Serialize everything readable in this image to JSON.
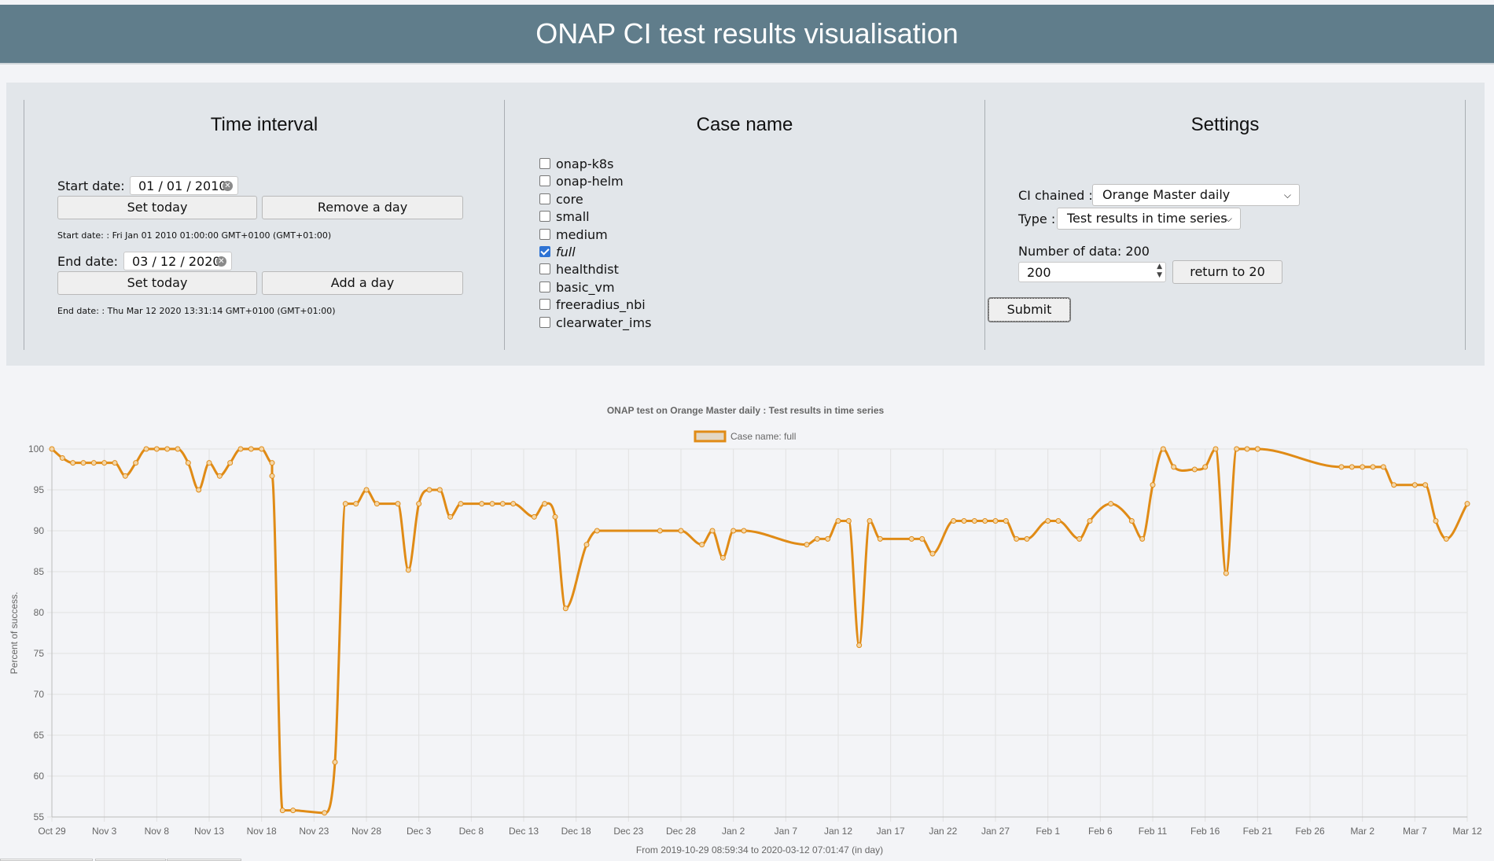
{
  "header": {
    "title": "ONAP CI test results visualisation"
  },
  "time_interval": {
    "title": "Time interval",
    "start_label": "Start date:",
    "start_value": "01 / 01 / 2010",
    "set_today_label": "Set today",
    "remove_day_label": "Remove a day",
    "start_note": "Start date: : Fri Jan 01 2010 01:00:00 GMT+0100 (GMT+01:00)",
    "end_label": "End date:",
    "end_value": "03 / 12 / 2020",
    "add_day_label": "Add a day",
    "end_note": "End date: : Thu Mar 12 2020 13:31:14 GMT+0100 (GMT+01:00)"
  },
  "case_name": {
    "title": "Case name",
    "items": [
      {
        "label": "onap-k8s",
        "checked": false
      },
      {
        "label": "onap-helm",
        "checked": false
      },
      {
        "label": "core",
        "checked": false
      },
      {
        "label": "small",
        "checked": false
      },
      {
        "label": "medium",
        "checked": false
      },
      {
        "label": "full",
        "checked": true
      },
      {
        "label": "healthdist",
        "checked": false
      },
      {
        "label": "basic_vm",
        "checked": false
      },
      {
        "label": "freeradius_nbi",
        "checked": false
      },
      {
        "label": "clearwater_ims",
        "checked": false
      }
    ]
  },
  "settings": {
    "title": "Settings",
    "ci_label": "CI chained :",
    "ci_value": "Orange Master daily",
    "type_label": "Type :",
    "type_value": "Test results in time series",
    "number_label": "Number of data: 200",
    "number_value": "200",
    "return_label": "return to 20",
    "submit_label": "Submit"
  },
  "icons": {
    "clear": "clear-icon",
    "chevron": "chevron-down-icon",
    "spinner": "spinner-arrows-icon"
  },
  "colors": {
    "header_bg": "#607d8b",
    "line": "#e08b16",
    "panel_bg": "#e2e6ea"
  },
  "chart_data": {
    "type": "line",
    "title": "ONAP test on Orange Master daily : Test results in time series",
    "legend": "Case name: full",
    "ylabel": "Percent of success.",
    "xlabel": "From 2019-10-29 08:59:34 to 2020-03-12 07:01:47 (in day)",
    "ylim": [
      55,
      100
    ],
    "yticks": [
      55,
      60,
      65,
      70,
      75,
      80,
      85,
      90,
      95,
      100
    ],
    "x_start": "Oct 29",
    "xtick_labels": [
      "Oct 29",
      "Nov 3",
      "Nov 8",
      "Nov 13",
      "Nov 18",
      "Nov 23",
      "Nov 28",
      "Dec 3",
      "Dec 8",
      "Dec 13",
      "Dec 18",
      "Dec 23",
      "Dec 28",
      "Jan 2",
      "Jan 7",
      "Jan 12",
      "Jan 17",
      "Jan 22",
      "Jan 27",
      "Feb 1",
      "Feb 6",
      "Feb 11",
      "Feb 16",
      "Feb 21",
      "Feb 26",
      "Mar 2",
      "Mar 7",
      "Mar 12"
    ],
    "series": [
      {
        "name": "Case name: full",
        "points": [
          [
            "Oct 29",
            100
          ],
          [
            "Oct 30",
            98.9
          ],
          [
            "Oct 31",
            98.3
          ],
          [
            "Nov 1",
            98.3
          ],
          [
            "Nov 2",
            98.3
          ],
          [
            "Nov 3",
            98.3
          ],
          [
            "Nov 4",
            98.3
          ],
          [
            "Nov 5",
            96.7
          ],
          [
            "Nov 6",
            98.3
          ],
          [
            "Nov 7",
            100
          ],
          [
            "Nov 8",
            100
          ],
          [
            "Nov 9",
            100
          ],
          [
            "Nov 10",
            100
          ],
          [
            "Nov 11",
            98.3
          ],
          [
            "Nov 12",
            95
          ],
          [
            "Nov 13",
            98.3
          ],
          [
            "Nov 14",
            96.7
          ],
          [
            "Nov 15",
            98.3
          ],
          [
            "Nov 16",
            100
          ],
          [
            "Nov 17",
            100
          ],
          [
            "Nov 18",
            100
          ],
          [
            "Nov 19",
            98.3
          ],
          [
            "Nov 19",
            96.7
          ],
          [
            "Nov 20",
            55.8
          ],
          [
            "Nov 21",
            55.8
          ],
          [
            "Nov 24",
            55.5
          ],
          [
            "Nov 25",
            61.7
          ],
          [
            "Nov 26",
            93.3
          ],
          [
            "Nov 27",
            93.3
          ],
          [
            "Nov 28",
            95
          ],
          [
            "Nov 29",
            93.3
          ],
          [
            "Dec 1",
            93.3
          ],
          [
            "Dec 2",
            85.2
          ],
          [
            "Dec 3",
            93.3
          ],
          [
            "Dec 4",
            95
          ],
          [
            "Dec 5",
            95
          ],
          [
            "Dec 6",
            91.7
          ],
          [
            "Dec 7",
            93.3
          ],
          [
            "Dec 9",
            93.3
          ],
          [
            "Dec 10",
            93.3
          ],
          [
            "Dec 11",
            93.3
          ],
          [
            "Dec 12",
            93.3
          ],
          [
            "Dec 14",
            91.7
          ],
          [
            "Dec 15",
            93.3
          ],
          [
            "Dec 16",
            91.7
          ],
          [
            "Dec 17",
            80.5
          ],
          [
            "Dec 19",
            88.3
          ],
          [
            "Dec 20",
            90
          ],
          [
            "Dec 26",
            90
          ],
          [
            "Dec 28",
            90
          ],
          [
            "Dec 30",
            88.3
          ],
          [
            "Dec 31",
            90
          ],
          [
            "Jan 1",
            86.7
          ],
          [
            "Jan 2",
            90
          ],
          [
            "Jan 3",
            90
          ],
          [
            "Jan 9",
            88.3
          ],
          [
            "Jan 10",
            89
          ],
          [
            "Jan 11",
            89
          ],
          [
            "Jan 12",
            91.2
          ],
          [
            "Jan 13",
            91.2
          ],
          [
            "Jan 14",
            76
          ],
          [
            "Jan 15",
            91.2
          ],
          [
            "Jan 16",
            89
          ],
          [
            "Jan 19",
            89
          ],
          [
            "Jan 20",
            89
          ],
          [
            "Jan 21",
            87.2
          ],
          [
            "Jan 23",
            91.2
          ],
          [
            "Jan 24",
            91.2
          ],
          [
            "Jan 25",
            91.2
          ],
          [
            "Jan 26",
            91.2
          ],
          [
            "Jan 27",
            91.2
          ],
          [
            "Jan 28",
            91.2
          ],
          [
            "Jan 29",
            89
          ],
          [
            "Jan 30",
            89
          ],
          [
            "Feb 1",
            91.2
          ],
          [
            "Feb 2",
            91.2
          ],
          [
            "Feb 4",
            89
          ],
          [
            "Feb 5",
            91.2
          ],
          [
            "Feb 7",
            93.3
          ],
          [
            "Feb 9",
            91.2
          ],
          [
            "Feb 10",
            89
          ],
          [
            "Feb 11",
            95.6
          ],
          [
            "Feb 12",
            100
          ],
          [
            "Feb 13",
            97.8
          ],
          [
            "Feb 15",
            97.5
          ],
          [
            "Feb 16",
            97.8
          ],
          [
            "Feb 17",
            100
          ],
          [
            "Feb 18",
            84.8
          ],
          [
            "Feb 19",
            100
          ],
          [
            "Feb 20",
            100
          ],
          [
            "Feb 21",
            100
          ],
          [
            "Feb 21",
            100
          ],
          [
            "Feb 29",
            97.8
          ],
          [
            "Mar 1",
            97.8
          ],
          [
            "Mar 2",
            97.8
          ],
          [
            "Mar 3",
            97.8
          ],
          [
            "Mar 4",
            97.8
          ],
          [
            "Mar 5",
            95.6
          ],
          [
            "Mar 7",
            95.6
          ],
          [
            "Mar 8",
            95.6
          ],
          [
            "Mar 9",
            91.2
          ],
          [
            "Mar 10",
            89
          ],
          [
            "Mar 12",
            93.3
          ]
        ]
      }
    ]
  }
}
